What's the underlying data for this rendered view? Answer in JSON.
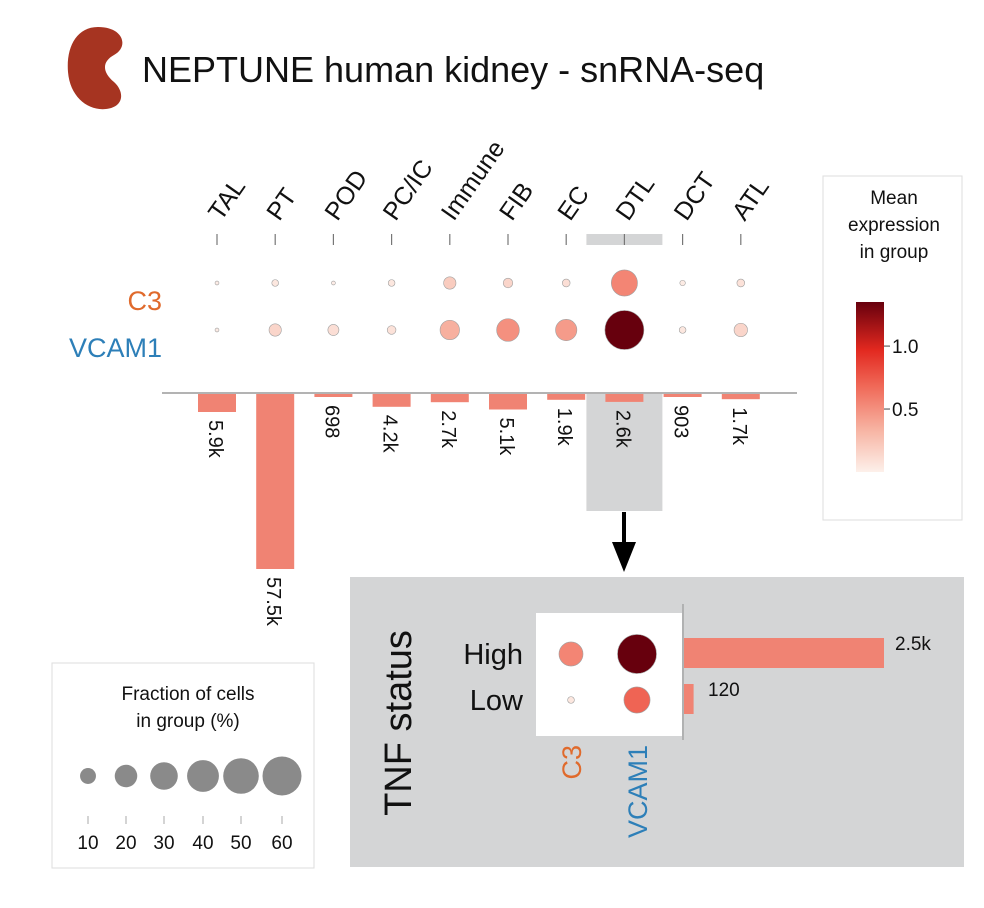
{
  "colors": {
    "c3_label": "#e06a2c",
    "vcam1_label": "#2d7fb8",
    "bar": "#f08373",
    "highlight": "#d4d5d6",
    "panel": "#d4d5d6",
    "kidney": "#a63421"
  },
  "chart_data": {
    "type": "dotplot",
    "title": "NEPTUNE human kidney - snRNA-seq",
    "icon": "kidney-icon",
    "main": {
      "categories": [
        "TAL",
        "PT",
        "POD",
        "PC/IC",
        "Immune",
        "FIB",
        "EC",
        "DTL",
        "DCT",
        "ATL"
      ],
      "highlight_category": "DTL",
      "genes": [
        {
          "name": "C3",
          "fraction_pct": [
            1,
            3,
            1,
            3,
            10,
            6,
            4,
            45,
            2,
            4
          ],
          "mean_expression": [
            0.02,
            0.05,
            0.02,
            0.05,
            0.2,
            0.15,
            0.1,
            0.55,
            0.03,
            0.08
          ]
        },
        {
          "name": "VCAM1",
          "fraction_pct": [
            1,
            10,
            8,
            5,
            25,
            34,
            30,
            100,
            3,
            12
          ],
          "mean_expression": [
            0.03,
            0.15,
            0.1,
            0.08,
            0.35,
            0.5,
            0.45,
            1.35,
            0.05,
            0.15
          ]
        }
      ],
      "cell_counts": [
        5900,
        57500,
        698,
        4200,
        2700,
        5100,
        1900,
        2600,
        903,
        1700
      ],
      "cell_count_labels": [
        "5.9k",
        "57.5k",
        "698",
        "4.2k",
        "2.7k",
        "5.1k",
        "1.9k",
        "2.6k",
        "903",
        "1.7k"
      ]
    },
    "colorbar": {
      "title": [
        "Mean",
        "expression",
        "in group"
      ],
      "range": [
        0,
        1.35
      ],
      "ticks": [
        1.0,
        0.5
      ],
      "tick_labels": [
        "1.0",
        "0.5"
      ]
    },
    "size_legend": {
      "title": [
        "Fraction of cells",
        "in group (%)"
      ],
      "values": [
        10,
        20,
        30,
        40,
        50,
        60
      ],
      "labels": [
        "10",
        "20",
        "30",
        "40",
        "50",
        "60"
      ]
    },
    "inset": {
      "title": "TNF status",
      "groups": [
        "High",
        "Low"
      ],
      "genes": [
        "C3",
        "VCAM1"
      ],
      "fraction_pct": [
        [
          38,
          100
        ],
        [
          3,
          45
        ]
      ],
      "mean_expression": [
        [
          0.55,
          1.35
        ],
        [
          0.05,
          0.7
        ]
      ],
      "cell_counts": [
        2500,
        120
      ],
      "cell_count_labels": [
        "2.5k",
        "120"
      ]
    }
  }
}
